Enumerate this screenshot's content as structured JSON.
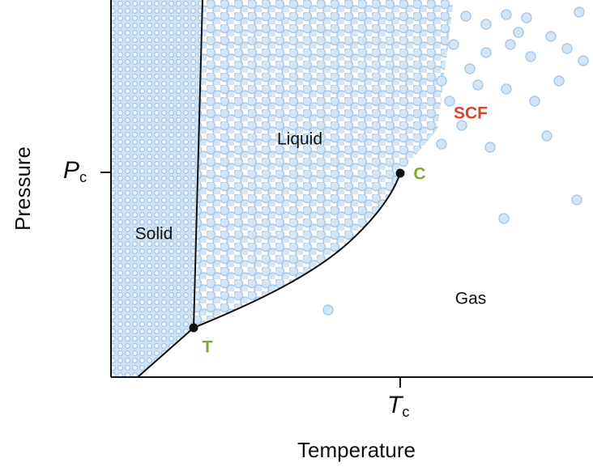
{
  "diagram": {
    "axes": {
      "x_title": "Temperature",
      "y_title": "Pressure"
    },
    "critical_pressure": {
      "symbol": "P",
      "subscript": "c"
    },
    "critical_temperature": {
      "symbol": "T",
      "subscript": "c"
    },
    "regions": {
      "solid": "Solid",
      "liquid": "Liquid",
      "gas": "Gas",
      "scf": "SCF"
    },
    "points": {
      "triple": "T",
      "critical": "C"
    }
  }
}
